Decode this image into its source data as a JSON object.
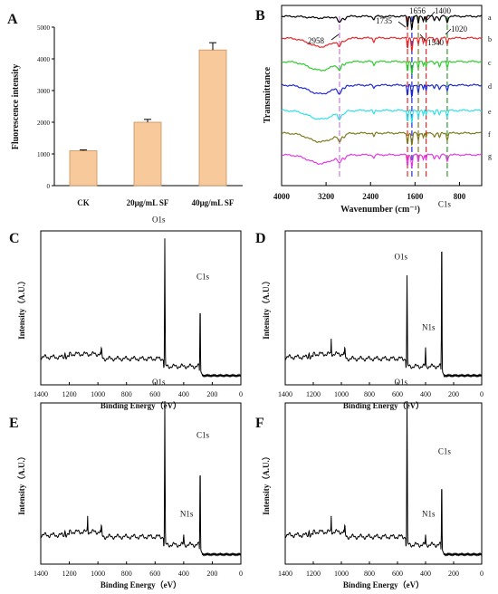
{
  "chart_data": [
    {
      "panel": "A",
      "type": "bar",
      "ylabel": "Fluorescence intensity",
      "ylim": [
        0,
        5000
      ],
      "yticks": [
        "0",
        "1000",
        "2000",
        "3000",
        "4000",
        "5000"
      ],
      "categories": [
        "CK",
        "20μg/mL SF",
        "40μg/mL SF"
      ],
      "values": [
        1100,
        2000,
        4280
      ],
      "errors": [
        25,
        90,
        230
      ],
      "bar_color": "#f8c99a",
      "bar_edge": "#c7925a"
    },
    {
      "panel": "B",
      "type": "line",
      "ylabel": "Transmittance",
      "xlabel": "Wavenumber (cm⁻¹)",
      "xlim": [
        4000,
        400
      ],
      "xticks": [
        "4000",
        "3200",
        "2400",
        "1600",
        "800"
      ],
      "series": [
        {
          "name": "a",
          "color": "#000000"
        },
        {
          "name": "b",
          "color": "#e8282a"
        },
        {
          "name": "c",
          "color": "#2ecc2e"
        },
        {
          "name": "d",
          "color": "#1f2bd0"
        },
        {
          "name": "e",
          "color": "#2fe0e8"
        },
        {
          "name": "f",
          "color": "#7f7a1f"
        },
        {
          "name": "g",
          "color": "#e23be0"
        }
      ],
      "annotations": [
        "2958",
        "1735",
        "1656",
        "1400",
        "1540",
        "1020"
      ],
      "marker_lines": [
        {
          "x": 2958,
          "color": "#c080d0"
        },
        {
          "x": 1735,
          "color": "#e8282a"
        },
        {
          "x": 1656,
          "color": "#1f2bd0"
        },
        {
          "x": 1540,
          "color": "#7f7a1f"
        },
        {
          "x": 1400,
          "color": "#e8282a"
        },
        {
          "x": 1020,
          "color": "#2e9a2e"
        }
      ]
    },
    {
      "panel": "C",
      "type": "line",
      "xlabel": "Binding Energy（eV）",
      "ylabel": "Intensity（A.U.）",
      "xlim": [
        1400,
        0
      ],
      "xticks": [
        "1400",
        "1200",
        "1000",
        "800",
        "600",
        "400",
        "200",
        "0"
      ],
      "peaks": [
        {
          "label": "O1s",
          "x": 532
        },
        {
          "label": "C1s",
          "x": 285
        }
      ]
    },
    {
      "panel": "D",
      "type": "line",
      "xlabel": "Binding Energy（eV）",
      "ylabel": "Intensity（A.U.）",
      "xlim": [
        1400,
        0
      ],
      "xticks": [
        "1400",
        "1200",
        "1000",
        "800",
        "600",
        "400",
        "200",
        "0"
      ],
      "peaks": [
        {
          "label": "O1s",
          "x": 532
        },
        {
          "label": "N1s",
          "x": 400
        },
        {
          "label": "C1s",
          "x": 285
        }
      ]
    },
    {
      "panel": "E",
      "type": "line",
      "xlabel": "Binding Energy（eV）",
      "ylabel": "Intensity（A.U.）",
      "xlim": [
        1400,
        0
      ],
      "xticks": [
        "1400",
        "1200",
        "1000",
        "800",
        "600",
        "400",
        "200",
        "0"
      ],
      "peaks": [
        {
          "label": "O1s",
          "x": 532
        },
        {
          "label": "N1s",
          "x": 400
        },
        {
          "label": "C1s",
          "x": 285
        }
      ]
    },
    {
      "panel": "F",
      "type": "line",
      "xlabel": "Binding Energy（eV）",
      "ylabel": "Intensity（A.U.）",
      "xlim": [
        1400,
        0
      ],
      "xticks": [
        "1400",
        "1200",
        "1000",
        "800",
        "600",
        "400",
        "200",
        "0"
      ],
      "peaks": [
        {
          "label": "O1s",
          "x": 532
        },
        {
          "label": "N1s",
          "x": 400
        },
        {
          "label": "C1s",
          "x": 285
        }
      ]
    }
  ]
}
